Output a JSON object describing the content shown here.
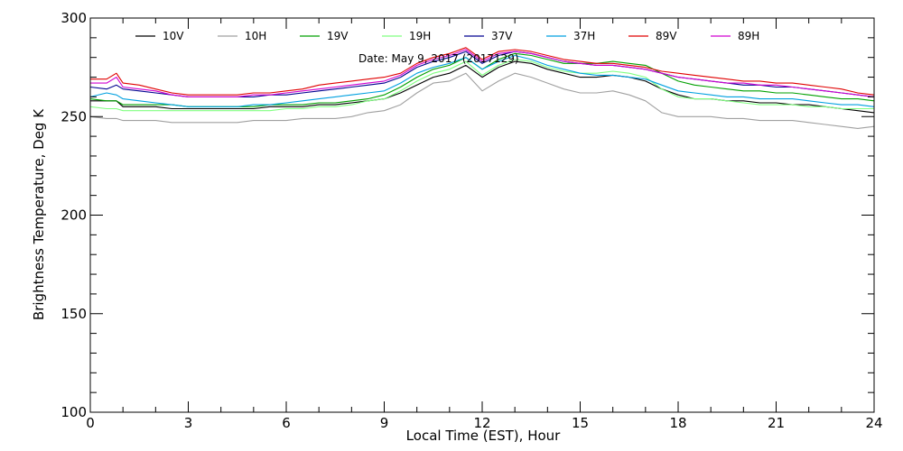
{
  "chart_data": {
    "type": "line",
    "xlabel": "Local Time (EST), Hour",
    "ylabel": "Brightness Temperature, Deg K",
    "xlim": [
      0,
      24
    ],
    "ylim": [
      100,
      300
    ],
    "xticks": [
      0,
      3,
      6,
      9,
      12,
      15,
      18,
      21,
      24
    ],
    "yticks": [
      100,
      150,
      200,
      250,
      300
    ],
    "x_minor_step": 1,
    "y_minor_step": 10,
    "grid": false,
    "legend_position": "top",
    "annotation": "Date: May  9, 2017 (2017129)",
    "x": [
      0,
      0.5,
      0.8,
      1,
      1.5,
      2,
      2.5,
      3,
      3.5,
      4,
      4.5,
      5,
      5.5,
      6,
      6.5,
      7,
      7.5,
      8,
      8.5,
      9,
      9.5,
      10,
      10.5,
      11,
      11.5,
      12,
      12.5,
      13,
      13.5,
      14,
      14.5,
      15,
      15.5,
      16,
      16.5,
      17,
      17.5,
      18,
      18.5,
      19,
      19.5,
      20,
      20.5,
      21,
      21.5,
      22,
      22.5,
      23,
      23.5,
      24
    ],
    "series": [
      {
        "name": "10V",
        "color": "#000000",
        "values": [
          258,
          258,
          258,
          255,
          255,
          255,
          254,
          254,
          254,
          254,
          254,
          254,
          255,
          255,
          255,
          256,
          256,
          257,
          258,
          259,
          262,
          266,
          270,
          272,
          276,
          270,
          275,
          278,
          277,
          274,
          272,
          270,
          270,
          271,
          270,
          268,
          264,
          261,
          259,
          259,
          258,
          258,
          257,
          257,
          256,
          256,
          255,
          254,
          253,
          252
        ]
      },
      {
        "name": "10H",
        "color": "#a0a0a0",
        "values": [
          250,
          249,
          249,
          248,
          248,
          248,
          247,
          247,
          247,
          247,
          247,
          248,
          248,
          248,
          249,
          249,
          249,
          250,
          252,
          253,
          256,
          262,
          267,
          268,
          272,
          263,
          268,
          272,
          270,
          267,
          264,
          262,
          262,
          263,
          261,
          258,
          252,
          250,
          250,
          250,
          249,
          249,
          248,
          248,
          248,
          247,
          246,
          245,
          244,
          245
        ]
      },
      {
        "name": "19V",
        "color": "#00a000",
        "values": [
          259,
          258,
          258,
          256,
          256,
          256,
          256,
          255,
          255,
          255,
          255,
          255,
          256,
          256,
          256,
          257,
          257,
          258,
          259,
          261,
          265,
          270,
          274,
          276,
          280,
          274,
          279,
          282,
          281,
          279,
          277,
          277,
          277,
          278,
          277,
          276,
          272,
          268,
          266,
          265,
          264,
          263,
          263,
          262,
          262,
          261,
          260,
          259,
          259,
          258
        ]
      },
      {
        "name": "19H",
        "color": "#80ff80",
        "values": [
          255,
          254,
          254,
          253,
          253,
          253,
          253,
          253,
          253,
          253,
          253,
          253,
          253,
          254,
          254,
          255,
          255,
          256,
          258,
          259,
          263,
          268,
          272,
          274,
          278,
          271,
          276,
          279,
          278,
          275,
          273,
          272,
          272,
          273,
          272,
          270,
          264,
          260,
          259,
          259,
          258,
          257,
          256,
          256,
          256,
          255,
          255,
          254,
          254,
          254
        ]
      },
      {
        "name": "37V",
        "color": "#000090",
        "values": [
          265,
          264,
          266,
          264,
          263,
          262,
          261,
          260,
          260,
          260,
          260,
          260,
          261,
          261,
          262,
          263,
          264,
          265,
          266,
          267,
          270,
          275,
          278,
          280,
          283,
          277,
          281,
          283,
          282,
          280,
          278,
          277,
          276,
          276,
          275,
          274,
          272,
          270,
          269,
          268,
          267,
          266,
          266,
          265,
          265,
          264,
          263,
          262,
          261,
          260
        ]
      },
      {
        "name": "37H",
        "color": "#00a0e0",
        "values": [
          260,
          262,
          261,
          259,
          258,
          257,
          256,
          255,
          255,
          255,
          255,
          256,
          256,
          257,
          258,
          259,
          260,
          261,
          262,
          263,
          267,
          272,
          275,
          277,
          280,
          274,
          278,
          281,
          279,
          276,
          274,
          272,
          271,
          271,
          270,
          269,
          266,
          263,
          262,
          261,
          260,
          260,
          259,
          259,
          259,
          258,
          257,
          256,
          256,
          255
        ]
      },
      {
        "name": "89V",
        "color": "#e00000",
        "values": [
          269,
          269,
          272,
          267,
          266,
          264,
          262,
          261,
          261,
          261,
          261,
          262,
          262,
          263,
          264,
          266,
          267,
          268,
          269,
          270,
          272,
          277,
          280,
          282,
          285,
          279,
          283,
          284,
          283,
          281,
          279,
          278,
          277,
          277,
          276,
          275,
          273,
          272,
          271,
          270,
          269,
          268,
          268,
          267,
          267,
          266,
          265,
          264,
          262,
          261
        ]
      },
      {
        "name": "89H",
        "color": "#d000d0",
        "values": [
          267,
          267,
          270,
          265,
          264,
          263,
          261,
          260,
          260,
          260,
          260,
          261,
          261,
          262,
          263,
          264,
          265,
          266,
          267,
          268,
          271,
          276,
          279,
          281,
          284,
          278,
          282,
          283,
          282,
          280,
          278,
          277,
          276,
          276,
          275,
          274,
          272,
          270,
          269,
          268,
          267,
          267,
          266,
          266,
          265,
          264,
          263,
          262,
          261,
          260
        ]
      }
    ]
  }
}
